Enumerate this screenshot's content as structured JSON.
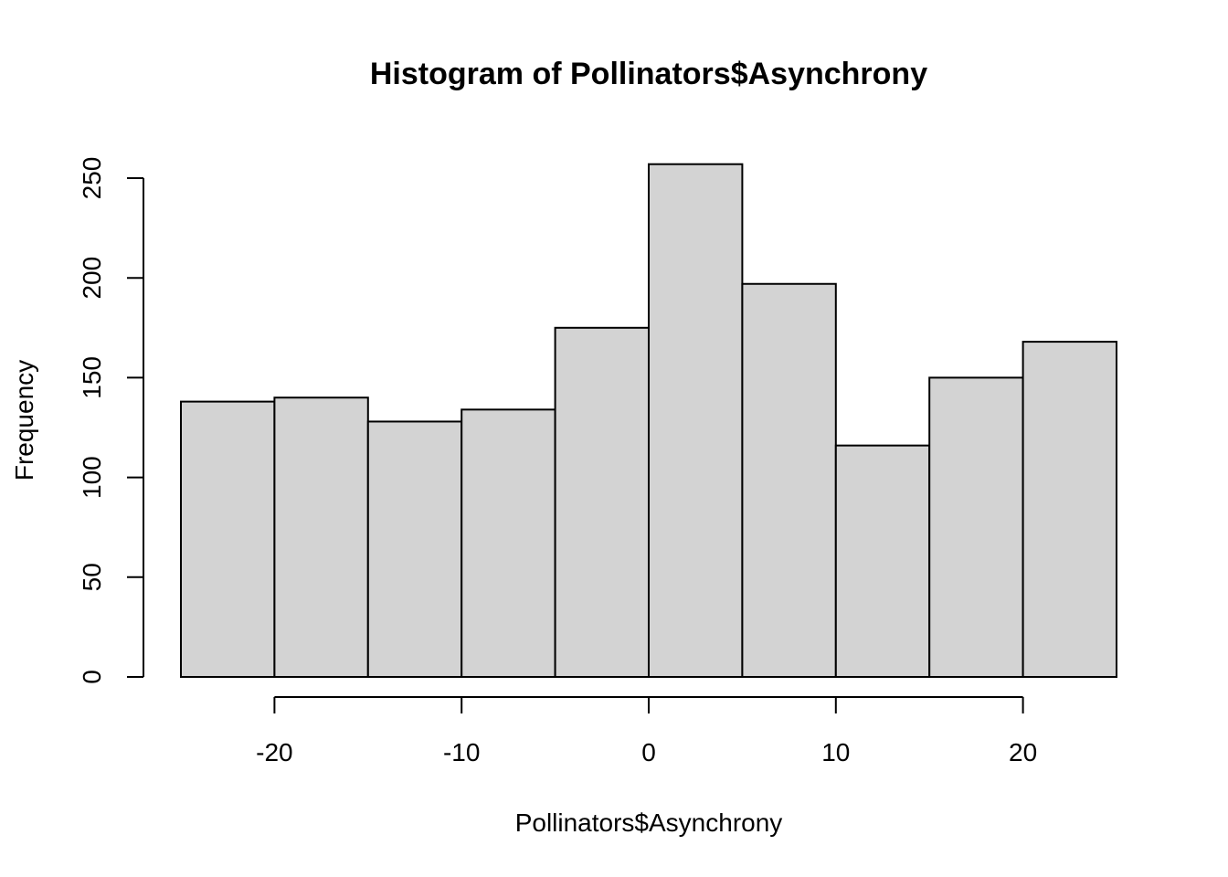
{
  "chart_data": {
    "type": "bar",
    "title": "Histogram of Pollinators$Asynchrony",
    "xlabel": "Pollinators$Asynchrony",
    "ylabel": "Frequency",
    "bins": [
      {
        "from": -25,
        "to": -20,
        "count": 138
      },
      {
        "from": -20,
        "to": -15,
        "count": 140
      },
      {
        "from": -15,
        "to": -10,
        "count": 128
      },
      {
        "from": -10,
        "to": -5,
        "count": 134
      },
      {
        "from": -5,
        "to": 0,
        "count": 175
      },
      {
        "from": 0,
        "to": 5,
        "count": 257
      },
      {
        "from": 5,
        "to": 10,
        "count": 197
      },
      {
        "from": 10,
        "to": 15,
        "count": 116
      },
      {
        "from": 15,
        "to": 20,
        "count": 150
      },
      {
        "from": 20,
        "to": 25,
        "count": 168
      }
    ],
    "xlim": [
      -25,
      25
    ],
    "ylim": [
      0,
      250
    ],
    "x_ticks": [
      -20,
      -10,
      0,
      10,
      20
    ],
    "y_ticks": [
      0,
      50,
      100,
      150,
      200,
      250
    ],
    "bar_fill": "#d3d3d3",
    "bar_stroke": "#000000",
    "grid": false,
    "legend": "none"
  }
}
